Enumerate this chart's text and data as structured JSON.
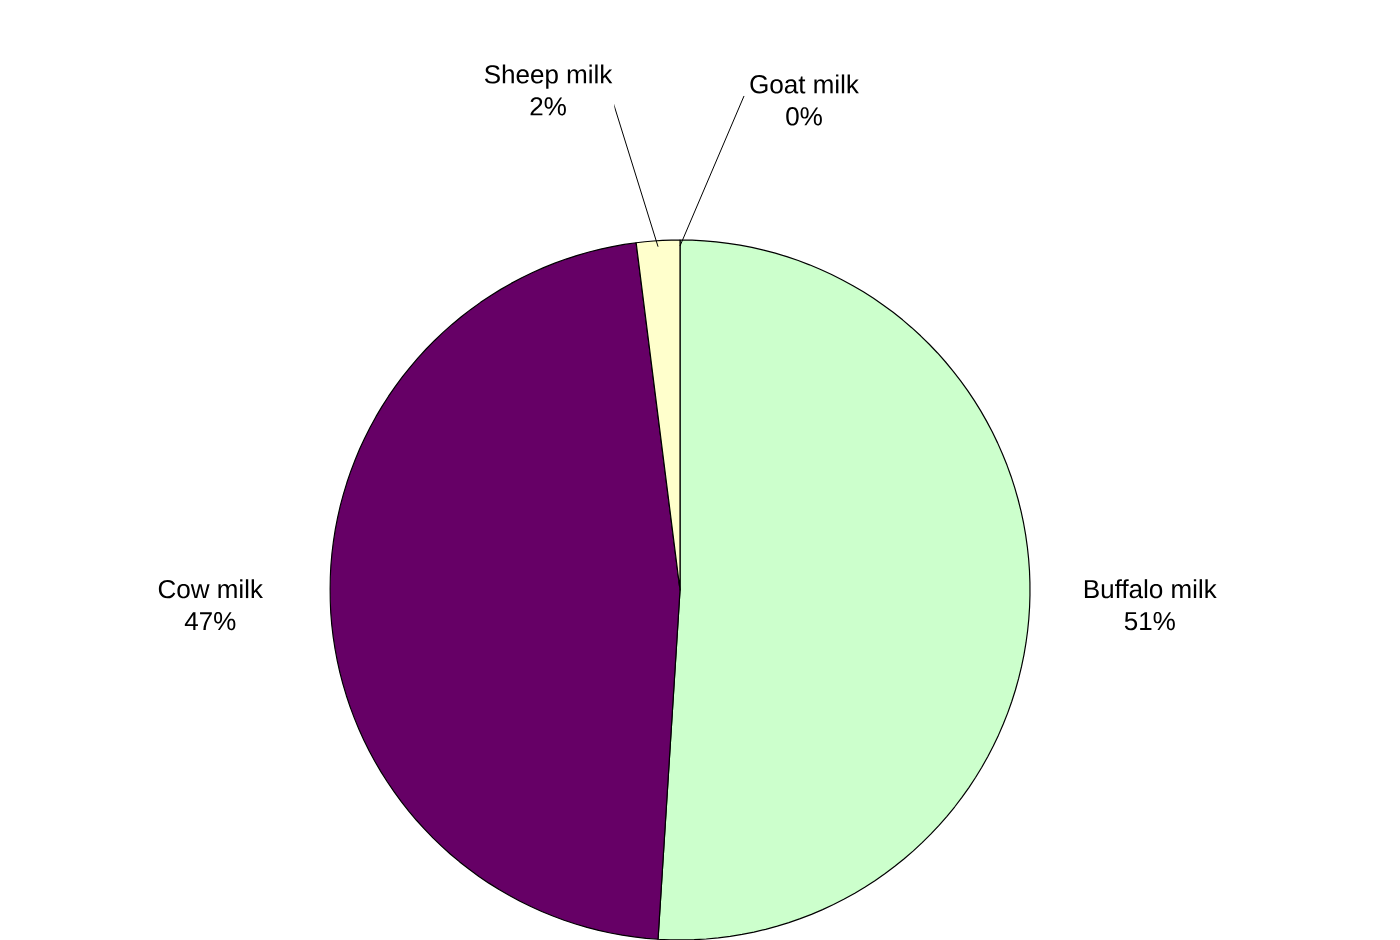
{
  "chart_data": {
    "type": "pie",
    "categories": [
      "Buffalo milk",
      "Cow milk",
      "Sheep milk",
      "Goat milk"
    ],
    "values": [
      51,
      47,
      2,
      0
    ],
    "colors": [
      "#ccffcc",
      "#660066",
      "#ffffcc",
      "#ccecff"
    ],
    "value_labels": [
      "51%",
      "47%",
      "2%",
      "0%"
    ]
  }
}
